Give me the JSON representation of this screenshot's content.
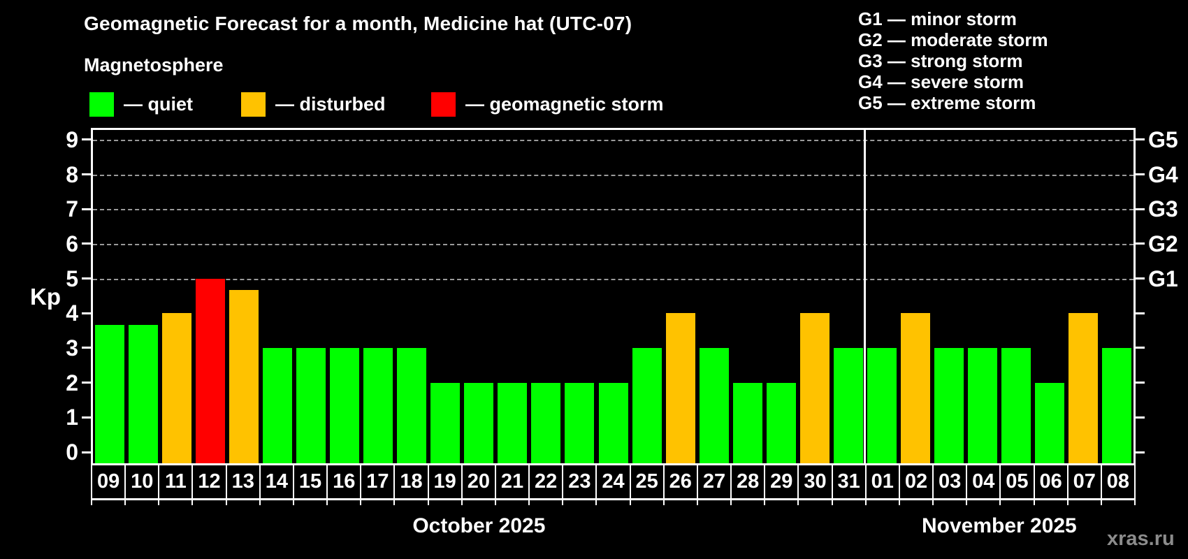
{
  "title": "Geomagnetic Forecast for a month, Medicine hat (UTC-07)",
  "subtitle": "Magnetosphere",
  "legend": {
    "items": [
      {
        "name": "quiet",
        "label": "— quiet",
        "color": "#00ff00"
      },
      {
        "name": "disturbed",
        "label": "— disturbed",
        "color": "#ffc200"
      },
      {
        "name": "geomagnetic-storm",
        "label": "— geomagnetic storm",
        "color": "#ff0000"
      }
    ]
  },
  "storm_scale": [
    "G1 — minor storm",
    "G2 — moderate storm",
    "G3 — strong storm",
    "G4 — severe storm",
    "G5 — extreme storm"
  ],
  "watermark": "xras.ru",
  "chart_data": {
    "type": "bar",
    "ylabel": "Kp",
    "ylim": [
      0,
      9.4
    ],
    "y_ticks": [
      0,
      1,
      2,
      3,
      4,
      5,
      6,
      7,
      8,
      9
    ],
    "gridlines_at_kp": [
      5,
      6,
      7,
      8,
      9
    ],
    "right_axis": [
      {
        "kp": 5,
        "label": "G1"
      },
      {
        "kp": 6,
        "label": "G2"
      },
      {
        "kp": 7,
        "label": "G3"
      },
      {
        "kp": 8,
        "label": "G4"
      },
      {
        "kp": 9,
        "label": "G5"
      }
    ],
    "color_rules": {
      "quiet_below": 4,
      "disturbed_below": 5,
      "storm_at_or_above": 5
    },
    "colors": {
      "quiet": "#00ff00",
      "disturbed": "#ffc200",
      "storm": "#ff0000"
    },
    "categories": [
      "09",
      "10",
      "11",
      "12",
      "13",
      "14",
      "15",
      "16",
      "17",
      "18",
      "19",
      "20",
      "21",
      "22",
      "23",
      "24",
      "25",
      "26",
      "27",
      "28",
      "29",
      "30",
      "31",
      "01",
      "02",
      "03",
      "04",
      "05",
      "06",
      "07",
      "08"
    ],
    "values": [
      3.67,
      3.67,
      4,
      5,
      4.67,
      3,
      3,
      3,
      3,
      3,
      2,
      2,
      2,
      2,
      2,
      2,
      3,
      4,
      3,
      2,
      2,
      4,
      3,
      3,
      4,
      3,
      3,
      3,
      2,
      4,
      3
    ],
    "months": [
      {
        "label": "October 2025",
        "count": 23
      },
      {
        "label": "November 2025",
        "count": 8
      }
    ]
  }
}
